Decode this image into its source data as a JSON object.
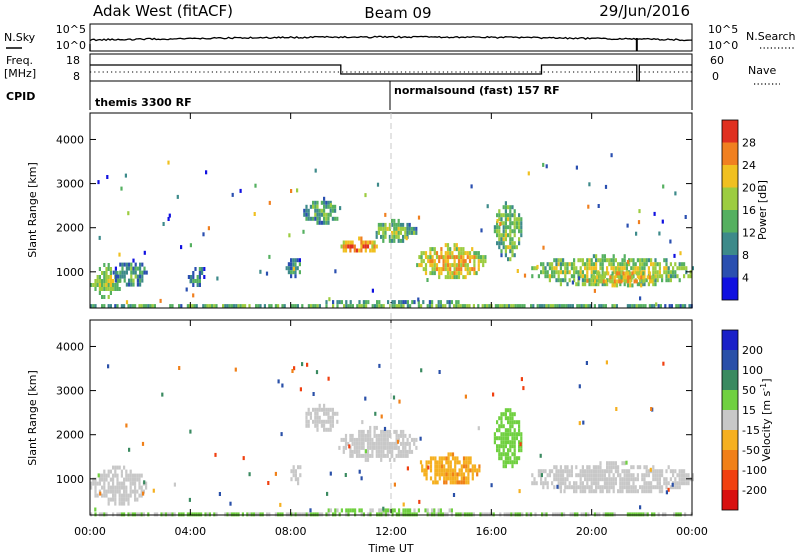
{
  "header": {
    "station": "Adak West (fitACF)",
    "beam": "Beam 09",
    "date": "29/Jun/2016"
  },
  "top_panels": {
    "noise": {
      "left_label": "N.Sky",
      "right_label": "N.Search",
      "left_ticks": [
        "10^5",
        "10^0"
      ],
      "right_ticks": [
        "10^5",
        "10^0"
      ]
    },
    "freq": {
      "left_label_1": "Freq.",
      "left_label_2": "[MHz]",
      "right_label": "Nave",
      "left_ticks": [
        "18",
        "8"
      ],
      "right_ticks": [
        "60",
        "0"
      ]
    },
    "cpid": {
      "label": "CPID",
      "modes": [
        "themis 3300 RF",
        "normalsound (fast) 157 RF"
      ]
    }
  },
  "power_panel": {
    "ylabel": "Slant Range [km]",
    "yticks": [
      "4000",
      "3000",
      "2000",
      "1000"
    ],
    "colorbar_label": "Power [dB]",
    "colorbar_ticks": [
      "28",
      "24",
      "20",
      "16",
      "12",
      "8",
      "4"
    ]
  },
  "velocity_panel": {
    "ylabel": "Slant Range [km]",
    "yticks": [
      "4000",
      "3000",
      "2000",
      "1000"
    ],
    "colorbar_label": "Velocity [m s",
    "colorbar_label_sup": "-1",
    "colorbar_label_end": "]",
    "colorbar_ticks": [
      "200",
      "100",
      "50",
      "15",
      "-15",
      "-50",
      "-100",
      "-200"
    ]
  },
  "xaxis": {
    "xlabel": "Time UT",
    "xticks": [
      "00:00",
      "04:00",
      "08:00",
      "12:00",
      "16:00",
      "20:00",
      "00:00"
    ]
  },
  "colors": {
    "power_scale": [
      "#1010e0",
      "#2a4fb0",
      "#3d8a8a",
      "#55b060",
      "#9ccc40",
      "#f0c020",
      "#f08020",
      "#e03020"
    ],
    "velocity_scale": [
      "#d81010",
      "#f04010",
      "#f08018",
      "#f5b020",
      "#c8c8c8",
      "#70d040",
      "#3a8a60",
      "#2a50a8",
      "#1a20c8"
    ]
  },
  "chart_data": [
    {
      "type": "heatmap",
      "name": "power",
      "x_range_hours": [
        0,
        24
      ],
      "y_range_km": [
        180,
        4600
      ],
      "value_range_db": [
        0,
        30
      ],
      "blobs": [
        {
          "t0": 0.0,
          "t1": 1.2,
          "r0": 450,
          "r1": 1200,
          "val": 14
        },
        {
          "t0": 0.9,
          "t1": 2.3,
          "r0": 700,
          "r1": 1300,
          "val": 8
        },
        {
          "t0": 3.9,
          "t1": 4.6,
          "r0": 700,
          "r1": 1200,
          "val": 6
        },
        {
          "t0": 7.8,
          "t1": 8.4,
          "r0": 900,
          "r1": 1400,
          "val": 7
        },
        {
          "t0": 8.5,
          "t1": 9.9,
          "r0": 2100,
          "r1": 2700,
          "val": 9
        },
        {
          "t0": 9.9,
          "t1": 11.5,
          "r0": 1450,
          "r1": 1800,
          "val": 21
        },
        {
          "t0": 11.3,
          "t1": 13.0,
          "r0": 1700,
          "r1": 2200,
          "val": 12
        },
        {
          "t0": 13.0,
          "t1": 15.8,
          "r0": 900,
          "r1": 1650,
          "val": 18
        },
        {
          "t0": 16.1,
          "t1": 17.2,
          "r0": 1300,
          "r1": 2600,
          "val": 12
        },
        {
          "t0": 17.5,
          "t1": 24.0,
          "r0": 700,
          "r1": 1400,
          "val": 14
        },
        {
          "t0": 20.0,
          "t1": 22.5,
          "r0": 700,
          "r1": 1100,
          "val": 18
        },
        {
          "t0": 0.0,
          "t1": 24.0,
          "r0": 180,
          "r1": 360,
          "val": 10
        }
      ]
    },
    {
      "type": "heatmap",
      "name": "velocity",
      "x_range_hours": [
        0,
        24
      ],
      "y_range_km": [
        180,
        4600
      ],
      "value_range_ms": [
        -250,
        250
      ],
      "blobs": [
        {
          "t0": 0.0,
          "t1": 2.2,
          "r0": 450,
          "r1": 1300,
          "val": 0
        },
        {
          "t0": 7.9,
          "t1": 8.4,
          "r0": 900,
          "r1": 1400,
          "val": 0
        },
        {
          "t0": 8.5,
          "t1": 9.9,
          "r0": 2100,
          "r1": 2700,
          "val": 0
        },
        {
          "t0": 9.9,
          "t1": 13.0,
          "r0": 1450,
          "r1": 2200,
          "val": 0
        },
        {
          "t0": 13.2,
          "t1": 15.5,
          "r0": 900,
          "r1": 1600,
          "val": -40
        },
        {
          "t0": 16.1,
          "t1": 17.2,
          "r0": 1300,
          "r1": 2600,
          "val": 30
        },
        {
          "t0": 17.5,
          "t1": 24.0,
          "r0": 700,
          "r1": 1400,
          "val": 0
        },
        {
          "t0": 0.0,
          "t1": 24.0,
          "r0": 180,
          "r1": 330,
          "val": 20
        }
      ]
    }
  ]
}
